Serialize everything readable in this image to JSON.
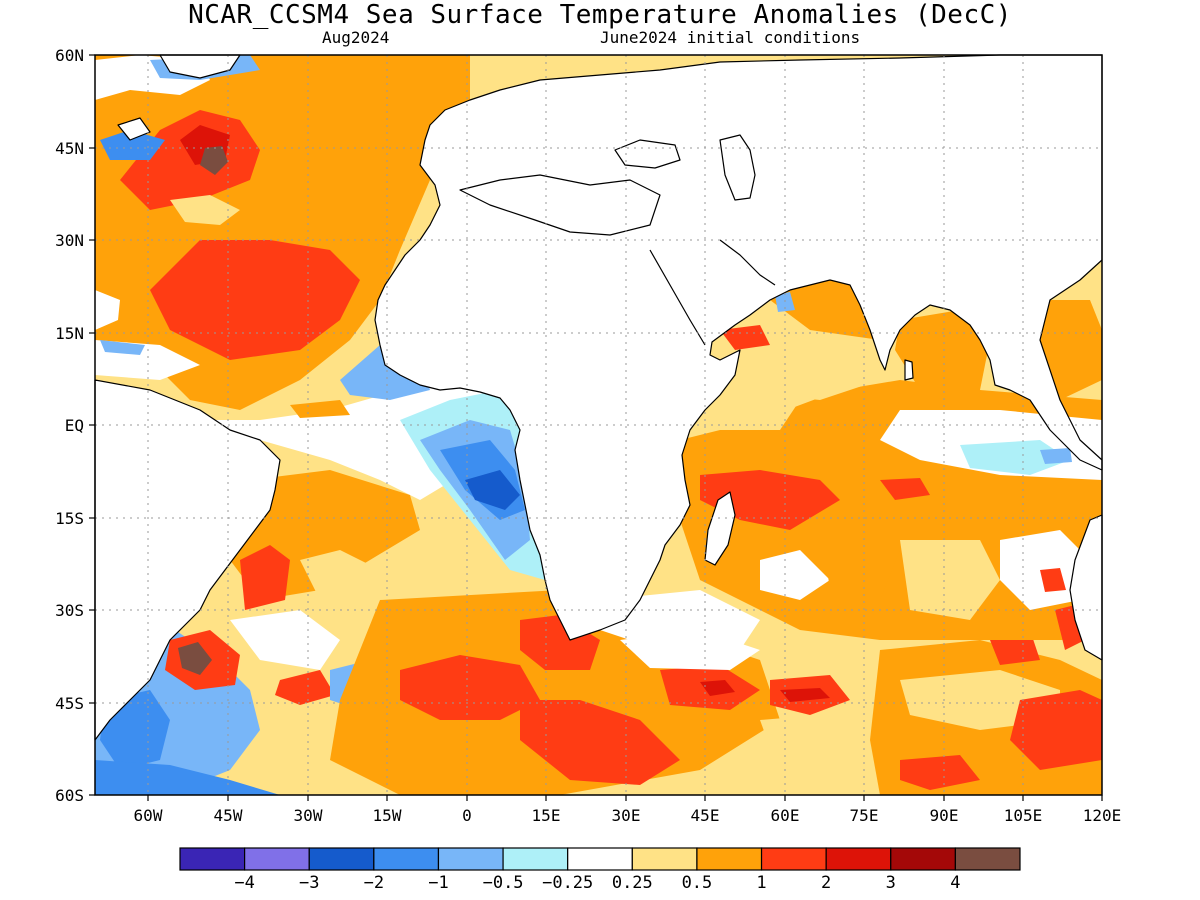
{
  "title": "NCAR_CCSM4 Sea Surface Temperature Anomalies (DecC)",
  "subtitle_left": "Aug2024",
  "subtitle_right": "June2024 initial conditions",
  "axes": {
    "lat_labels": [
      "60N",
      "45N",
      "30N",
      "15N",
      "EQ",
      "15S",
      "30S",
      "45S",
      "60S"
    ],
    "lon_labels": [
      "60W",
      "45W",
      "30W",
      "15W",
      "0",
      "15E",
      "30E",
      "45E",
      "60E",
      "75E",
      "90E",
      "105E",
      "120E"
    ]
  },
  "colorbar": {
    "colors": [
      "#3a25b5",
      "#8070e8",
      "#155bcc",
      "#3d8ef0",
      "#78b6f8",
      "#aef0f8",
      "#ffffff",
      "#ffe286",
      "#ffa20a",
      "#ff3c14",
      "#dd1308",
      "#a40808",
      "#7a4d40"
    ],
    "labels": [
      "−4",
      "−3",
      "−2",
      "−1",
      "−0.5",
      "−0.25",
      "0.25",
      "0.5",
      "1",
      "2",
      "3",
      "4"
    ]
  }
}
